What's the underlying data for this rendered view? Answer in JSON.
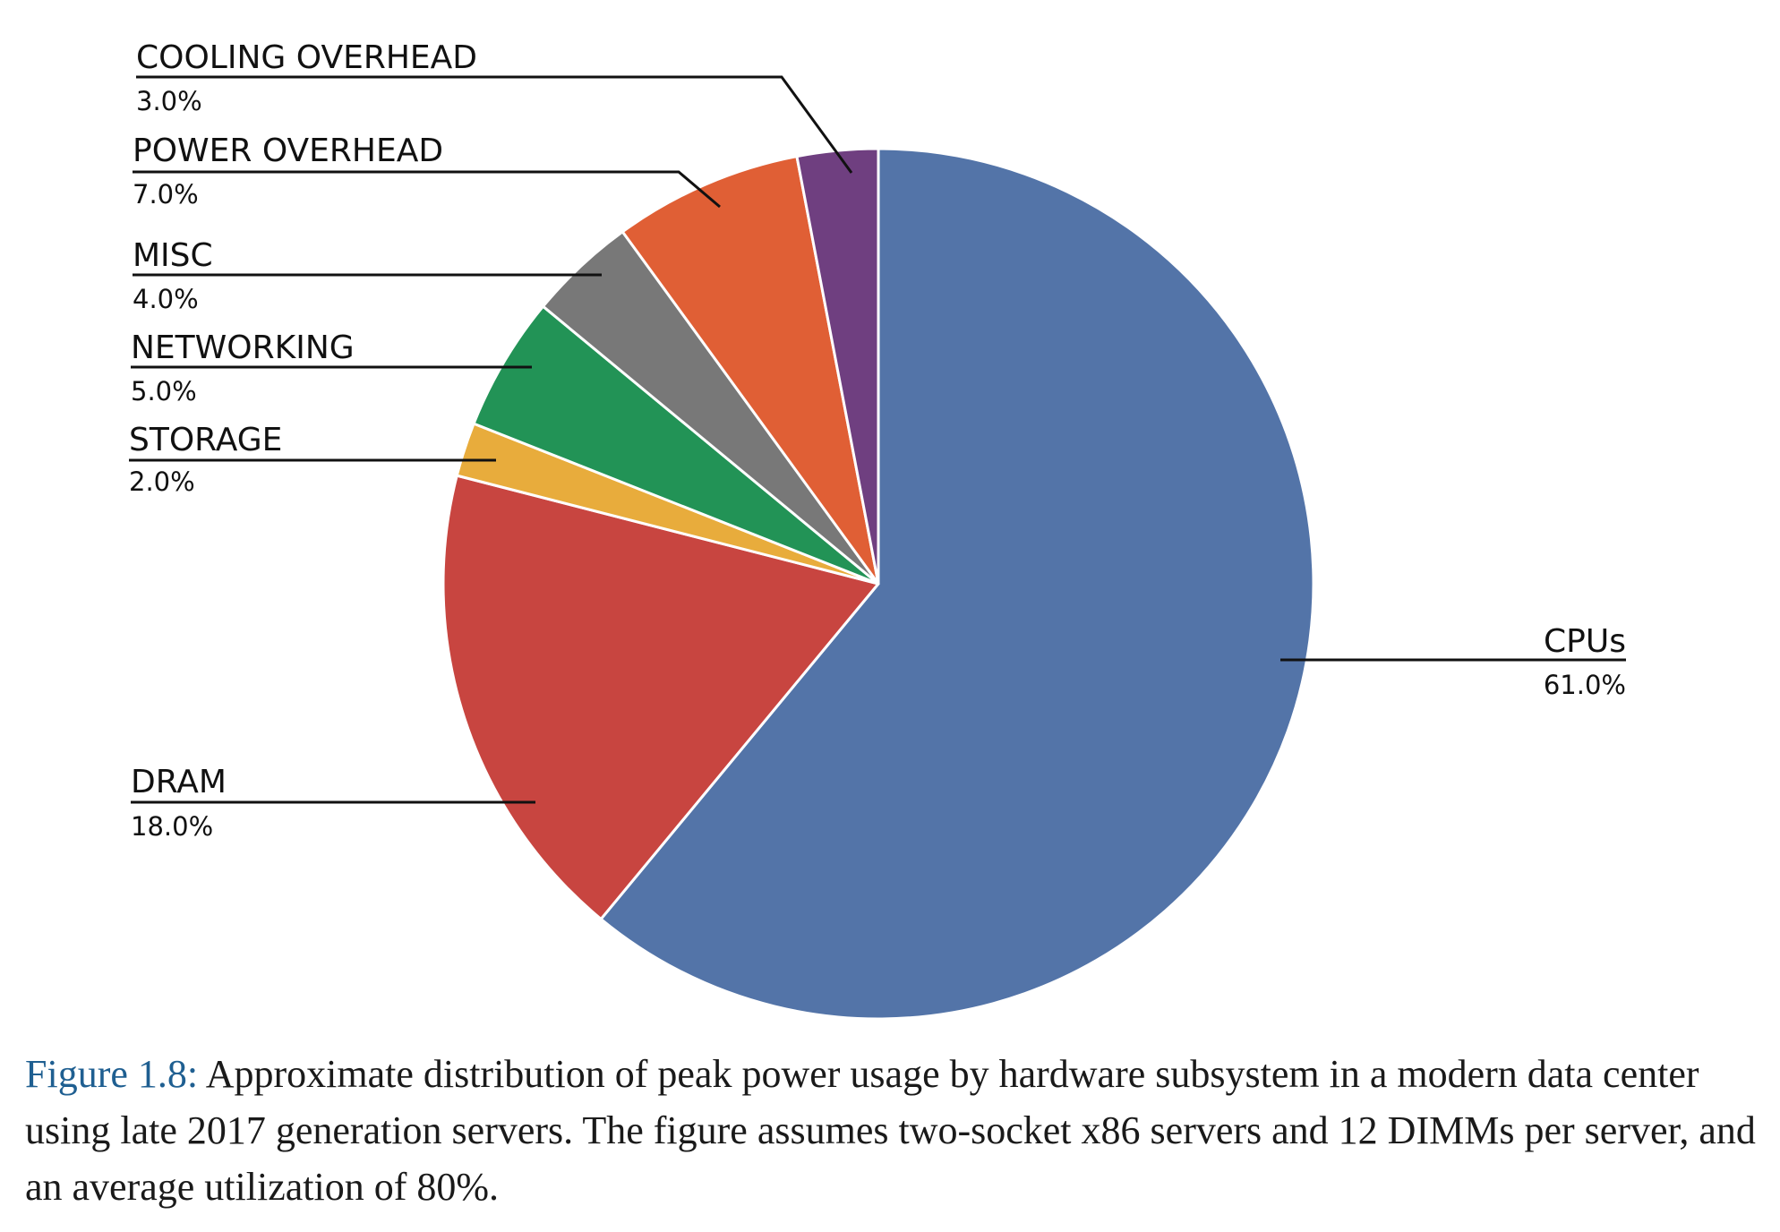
{
  "chart_data": {
    "type": "pie",
    "start_angle_deg": 0,
    "direction": "clockwise",
    "slices": [
      {
        "label": "CPUs",
        "value": 61.0,
        "value_label": "61.0%",
        "color": "#5374a8"
      },
      {
        "label": "DRAM",
        "value": 18.0,
        "value_label": "18.0%",
        "color": "#c84540"
      },
      {
        "label": "STORAGE",
        "value": 2.0,
        "value_label": "2.0%",
        "color": "#e8ac3c"
      },
      {
        "label": "NETWORKING",
        "value": 5.0,
        "value_label": "5.0%",
        "color": "#229356"
      },
      {
        "label": "MISC",
        "value": 4.0,
        "value_label": "4.0%",
        "color": "#787878"
      },
      {
        "label": "POWER OVERHEAD",
        "value": 7.0,
        "value_label": "7.0%",
        "color": "#e05f35"
      },
      {
        "label": "COOLING OVERHEAD",
        "value": 3.0,
        "value_label": "3.0%",
        "color": "#6f3f80"
      }
    ]
  },
  "caption": {
    "figure_ref": "Figure 1.8:",
    "text": "Approximate distribution of peak power usage by hardware subsystem in a modern data center using late 2017 generation servers. The figure assumes two-socket x86 servers and 12 DIMMs per server, and an average utilization of 80%."
  }
}
